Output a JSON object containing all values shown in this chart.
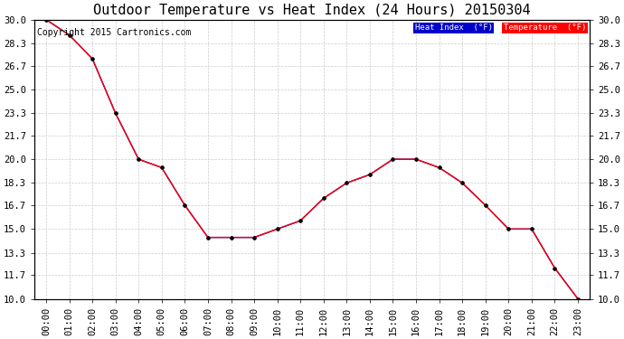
{
  "title": "Outdoor Temperature vs Heat Index (24 Hours) 20150304",
  "copyright_text": "Copyright 2015 Cartronics.com",
  "x_labels": [
    "00:00",
    "01:00",
    "02:00",
    "03:00",
    "04:00",
    "05:00",
    "06:00",
    "07:00",
    "08:00",
    "09:00",
    "10:00",
    "11:00",
    "12:00",
    "13:00",
    "14:00",
    "15:00",
    "16:00",
    "17:00",
    "18:00",
    "19:00",
    "20:00",
    "21:00",
    "22:00",
    "23:00"
  ],
  "temperature": [
    30.0,
    28.9,
    27.2,
    23.3,
    20.0,
    19.4,
    16.7,
    14.4,
    14.4,
    14.4,
    15.0,
    15.6,
    17.2,
    18.3,
    18.9,
    20.0,
    20.0,
    19.4,
    18.3,
    16.7,
    15.0,
    15.0,
    12.2,
    10.0
  ],
  "heat_index": [
    30.0,
    28.9,
    27.2,
    23.3,
    20.0,
    19.4,
    16.7,
    14.4,
    14.4,
    14.4,
    15.0,
    15.6,
    17.2,
    18.3,
    18.9,
    20.0,
    20.0,
    19.4,
    18.3,
    16.7,
    15.0,
    15.0,
    12.2,
    10.0
  ],
  "ylim": [
    10.0,
    30.0
  ],
  "yticks": [
    10.0,
    11.7,
    13.3,
    15.0,
    16.7,
    18.3,
    20.0,
    21.7,
    23.3,
    25.0,
    26.7,
    28.3,
    30.0
  ],
  "temperature_color": "#ff0000",
  "heat_index_color": "#0000cc",
  "background_color": "#ffffff",
  "grid_color": "#cccccc",
  "legend_heat_index_bg": "#0000cc",
  "legend_temp_bg": "#ff0000",
  "legend_text_color": "#ffffff",
  "title_fontsize": 11,
  "tick_fontsize": 7.5,
  "copyright_fontsize": 7
}
